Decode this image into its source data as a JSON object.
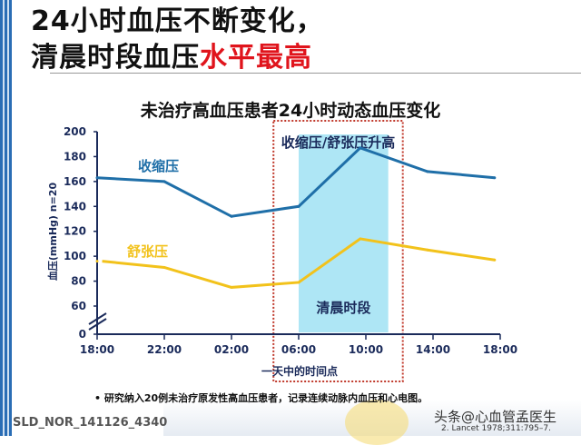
{
  "slide": {
    "title_line1": "24小时血压不断变化，",
    "title_line2_black": "清晨时段血压",
    "title_line2_red": "水平最高",
    "bullet": "• 研究纳入20例未治疗原发性高血压患者，记录连续动脉内血压和心电图。",
    "slide_code": "SLD_NOR_141126_4340",
    "watermark": "头条@心血管孟医生",
    "reference": "2. Lancet 1978;311:795–7.",
    "colors": {
      "accent_bar": "#2a6db5",
      "highlight_red": "#e0141c"
    }
  },
  "chart_data": {
    "type": "line",
    "title": "未治疗高血压患者24小时动态血压变化",
    "xlabel": "一天中的时间点",
    "ylabel": "血压(mmHg) n=20",
    "x_ticks": [
      "18:00",
      "22:00",
      "02:00",
      "06:00",
      "10:00",
      "14:00",
      "18:00"
    ],
    "y_ticks": [
      0,
      60,
      80,
      100,
      120,
      140,
      160,
      180,
      200
    ],
    "ylim": [
      60,
      200
    ],
    "y_axis_break": true,
    "grid": false,
    "series": [
      {
        "name": "收缩压",
        "color": "#1f6fa8",
        "x": [
          "18:00",
          "22:00",
          "02:00",
          "06:00",
          "09:40",
          "13:40",
          "17:40"
        ],
        "values": [
          163,
          160,
          132,
          140,
          187,
          168,
          163
        ]
      },
      {
        "name": "舒张压",
        "color": "#f2c21b",
        "x": [
          "18:00",
          "22:00",
          "02:00",
          "06:00",
          "09:40",
          "13:40",
          "17:40"
        ],
        "values": [
          96,
          91,
          75,
          79,
          114,
          105,
          97
        ]
      }
    ],
    "shaded_period": {
      "label": "清晨时段",
      "start": "06:00",
      "end": "11:20",
      "color": "#aee6f5"
    },
    "annotation": "收缩压/舒张压升高",
    "dotted_box_color": "#c0392b"
  }
}
